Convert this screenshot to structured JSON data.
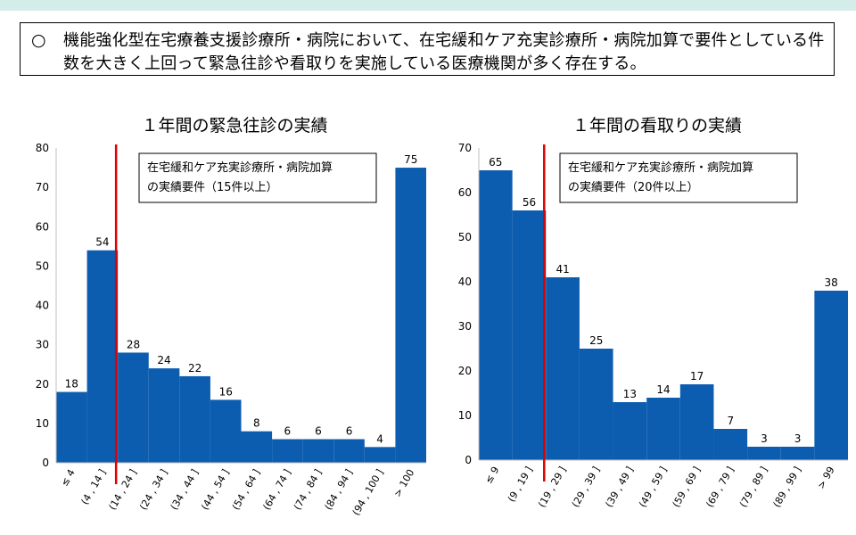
{
  "summary": {
    "bullet": "○",
    "text": "機能強化型在宅療養支援診療所・病院において、在宅緩和ケア充実診療所・病院加算で要件としている件数を大きく上回って緊急往診や看取りを実施している医療機関が多く存在する。"
  },
  "colors": {
    "bar": "#0c5db0",
    "threshold": "#e00000",
    "axis": "#bfbfbf"
  },
  "chart_data": [
    {
      "type": "bar",
      "title": "１年間の緊急往診の実績",
      "categories": [
        "≤ 4",
        "(4 , 14 ]",
        "(14 , 24 ]",
        "(24 , 34 ]",
        "(34 , 44 ]",
        "(44 , 54 ]",
        "(54 , 64 ]",
        "(64 , 74 ]",
        "(74 , 84 ]",
        "(84 , 94 ]",
        "(94 , 100 ]",
        "> 100"
      ],
      "values": [
        18,
        54,
        28,
        24,
        22,
        16,
        8,
        6,
        6,
        6,
        4,
        75
      ],
      "ylim": [
        0,
        80
      ],
      "yticks": [
        0,
        10,
        20,
        30,
        40,
        50,
        60,
        70,
        80
      ],
      "threshold_boundary_index": 2,
      "annotation": [
        "在宅緩和ケア充実診療所・病院加算",
        "の実績要件（15件以上）"
      ],
      "xlabel": "",
      "ylabel": ""
    },
    {
      "type": "bar",
      "title": "１年間の看取りの実績",
      "categories": [
        "≤ 9",
        "(9 , 19 ]",
        "(19 , 29 ]",
        "(29 , 39 ]",
        "(39 , 49 ]",
        "(49 , 59 ]",
        "(59 , 69 ]",
        "(69 , 79 ]",
        "(79 , 89 ]",
        "(89 , 99 ]",
        "> 99"
      ],
      "values": [
        65,
        56,
        41,
        25,
        13,
        14,
        17,
        7,
        3,
        3,
        38
      ],
      "ylim": [
        0,
        70
      ],
      "yticks": [
        0,
        10,
        20,
        30,
        40,
        50,
        60,
        70
      ],
      "threshold_boundary_index": 2,
      "annotation": [
        "在宅緩和ケア充実診療所・病院加算",
        "の実績要件（20件以上）"
      ],
      "xlabel": "",
      "ylabel": ""
    }
  ]
}
